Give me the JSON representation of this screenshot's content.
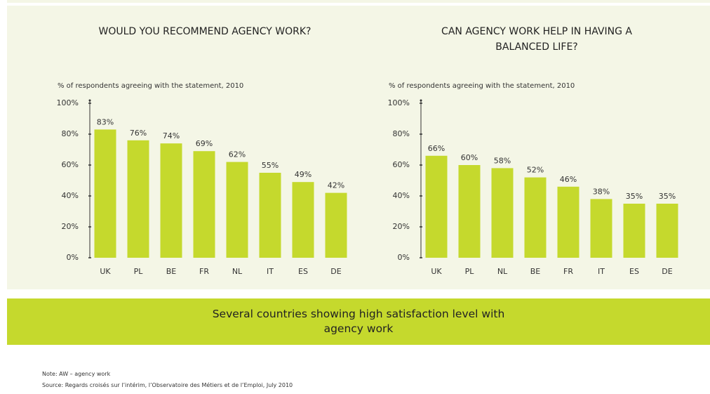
{
  "chart_data": [
    {
      "type": "bar",
      "title": "WOULD YOU RECOMMEND AGENCY WORK?",
      "subtitle": "% of respondents agreeing with the statement, 2010",
      "categories": [
        "UK",
        "PL",
        "BE",
        "FR",
        "NL",
        "IT",
        "ES",
        "DE"
      ],
      "values": [
        83,
        76,
        74,
        69,
        62,
        55,
        49,
        42
      ],
      "value_labels": [
        "83%",
        "76%",
        "74%",
        "69%",
        "62%",
        "55%",
        "49%",
        "42%"
      ],
      "color": "#c5d92d",
      "ylim": [
        0,
        100
      ],
      "yticks": [
        {
          "value": 0,
          "label": "0%"
        },
        {
          "value": 20,
          "label": "20%"
        },
        {
          "value": 40,
          "label": "40%"
        },
        {
          "value": 60,
          "label": "60%"
        },
        {
          "value": 80,
          "label": "80%"
        },
        {
          "value": 100,
          "label": "100%"
        }
      ]
    },
    {
      "type": "bar",
      "title": "CAN AGENCY WORK HELP IN HAVING A BALANCED LIFE?",
      "subtitle": "% of respondents agreeing with the statement, 2010",
      "categories": [
        "UK",
        "PL",
        "NL",
        "BE",
        "FR",
        "IT",
        "ES",
        "DE"
      ],
      "values": [
        66,
        60,
        58,
        52,
        46,
        38,
        35,
        35
      ],
      "value_labels": [
        "66%",
        "60%",
        "58%",
        "52%",
        "46%",
        "38%",
        "35%",
        "35%"
      ],
      "color": "#c5d92d",
      "ylim": [
        0,
        100
      ],
      "yticks": [
        {
          "value": 0,
          "label": "0%"
        },
        {
          "value": 20,
          "label": "20%"
        },
        {
          "value": 40,
          "label": "40%"
        },
        {
          "value": 60,
          "label": "60%"
        },
        {
          "value": 80,
          "label": "80%"
        },
        {
          "value": 100,
          "label": "100%"
        }
      ]
    }
  ],
  "banner": "Several countries showing high satisfaction level with agency work",
  "note": "Note: AW – agency work",
  "source": "Source: Regards croisés sur l’intérim, l’Observatoire des Métiers et de l’Emploi, July 2010"
}
